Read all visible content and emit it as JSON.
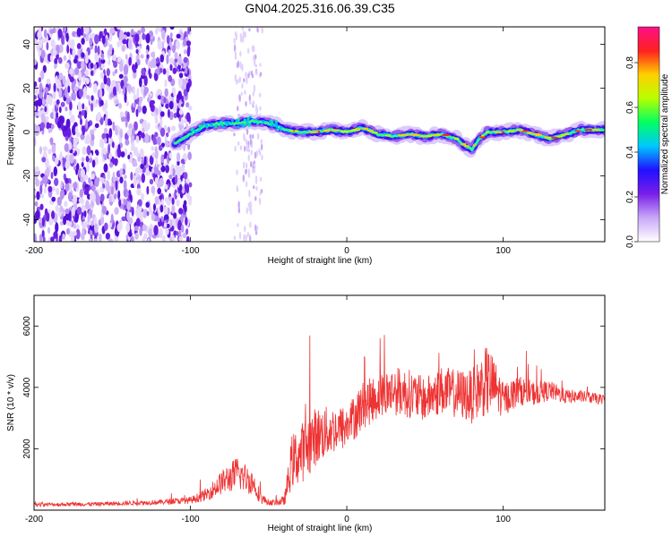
{
  "title": "GN04.2025.316.06.39.C35",
  "chart_data": [
    {
      "type": "heatmap",
      "name": "spectrogram",
      "xlabel": "Height of straight line (km)",
      "ylabel": "Frequency (Hz)",
      "xlim": [
        -200,
        165
      ],
      "ylim": [
        -50,
        48
      ],
      "xticks": [
        -200,
        -100,
        0,
        100
      ],
      "yticks": [
        -40,
        -20,
        0,
        20,
        40
      ],
      "colorbar": {
        "label": "Normalized spectral amplitude",
        "range": [
          0.0,
          0.96
        ],
        "ticks": [
          0.0,
          0.2,
          0.4,
          0.6,
          0.8
        ],
        "colormap": [
          "#ffffff",
          "#c8a8f8",
          "#7a1ee8",
          "#2010ff",
          "#00c8ff",
          "#00ff60",
          "#b8ff00",
          "#ffd000",
          "#ff2020",
          "#ff1088"
        ]
      },
      "signal_track": {
        "x": [
          -110,
          -100,
          -90,
          -80,
          -70,
          -60,
          -50,
          -45,
          -40,
          -30,
          -20,
          -10,
          0,
          10,
          20,
          30,
          40,
          50,
          60,
          70,
          75,
          80,
          85,
          90,
          100,
          110,
          120,
          130,
          140,
          150,
          165
        ],
        "freq": [
          -5,
          -1,
          3,
          4,
          4,
          5,
          4,
          3,
          1,
          0,
          0,
          1,
          0,
          2,
          -1,
          -2,
          -1,
          -2,
          -1,
          -3,
          -6,
          -8,
          -3,
          0,
          0,
          1,
          -1,
          -3,
          -1,
          1,
          1
        ]
      },
      "noise_region_x": [
        -200,
        -100
      ]
    },
    {
      "type": "line",
      "name": "snr",
      "xlabel": "Height of straight line (km)",
      "ylabel": "SNR (10 * v/v)",
      "xlim": [
        -200,
        165
      ],
      "ylim": [
        0,
        7000
      ],
      "xticks": [
        -200,
        -100,
        0,
        100
      ],
      "yticks": [
        2000,
        4000,
        6000
      ],
      "series": [
        {
          "name": "SNR",
          "color": "#ee3333",
          "x": [
            -200,
            -180,
            -160,
            -140,
            -120,
            -100,
            -90,
            -80,
            -70,
            -60,
            -55,
            -50,
            -45,
            -40,
            -35,
            -30,
            -25,
            -20,
            -10,
            0,
            10,
            20,
            30,
            40,
            50,
            60,
            70,
            80,
            85,
            90,
            95,
            100,
            110,
            120,
            130,
            140,
            150,
            165
          ],
          "values": [
            180,
            190,
            200,
            230,
            260,
            320,
            500,
            900,
            1200,
            900,
            400,
            250,
            250,
            300,
            1600,
            1800,
            2100,
            2400,
            2600,
            2700,
            3400,
            3700,
            3900,
            3800,
            3600,
            3900,
            3800,
            3700,
            4000,
            4200,
            4000,
            3600,
            3900,
            3800,
            3900,
            3700,
            3700,
            3600
          ],
          "spread": [
            80,
            80,
            80,
            90,
            100,
            140,
            250,
            500,
            700,
            500,
            250,
            120,
            120,
            200,
            1100,
            1200,
            1300,
            1200,
            1000,
            900,
            1000,
            900,
            1000,
            1000,
            900,
            1000,
            1000,
            1100,
            1200,
            1500,
            1100,
            700,
            600,
            500,
            400,
            300,
            250,
            200
          ]
        }
      ]
    }
  ]
}
